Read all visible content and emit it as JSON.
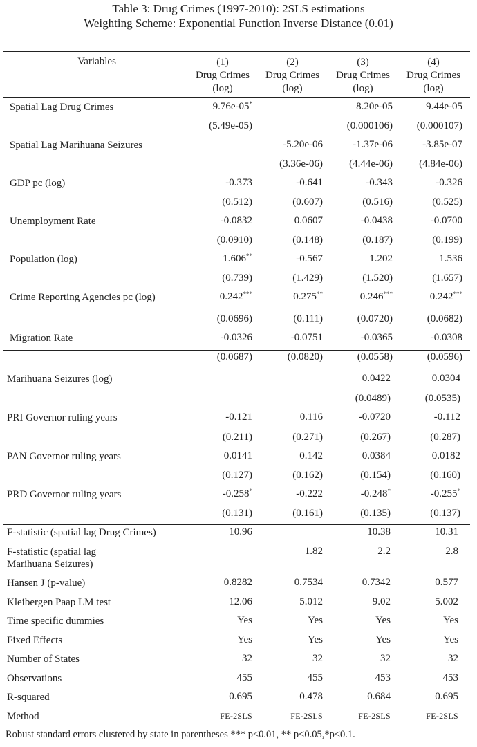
{
  "title": "Table 3: Drug Crimes (1997-2010): 2SLS estimations",
  "subtitle": "Weighting Scheme: Exponential Function Inverse Distance (0.01)",
  "header": {
    "variables": "Variables",
    "columns": [
      {
        "num": "(1)",
        "dep": "Drug Crimes",
        "unit": "(log)"
      },
      {
        "num": "(2)",
        "dep": "Drug Crimes",
        "unit": "(log)"
      },
      {
        "num": "(3)",
        "dep": "Drug Crimes",
        "unit": "(log)"
      },
      {
        "num": "(4)",
        "dep": "Drug Crimes",
        "unit": "(log)"
      }
    ]
  },
  "rows": [
    {
      "label": "Spatial Lag Drug Crimes",
      "values": [
        "9.76e-05",
        "",
        "8.20e-05",
        "9.44e-05"
      ],
      "stars": [
        "*",
        "",
        "",
        ""
      ]
    },
    {
      "label": "",
      "values": [
        "(5.49e-05)",
        "",
        "(0.000106)",
        "(0.000107)"
      ]
    },
    {
      "label": "Spatial Lag Marihuana Seizures",
      "values": [
        "",
        "-5.20e-06",
        "-1.37e-06",
        "-3.85e-07"
      ]
    },
    {
      "label": "",
      "values": [
        "",
        "(3.36e-06)",
        "(4.44e-06)",
        "(4.84e-06)"
      ]
    },
    {
      "label": "GDP pc (log)",
      "values": [
        "-0.373",
        "-0.641",
        "-0.343",
        "-0.326"
      ]
    },
    {
      "label": "",
      "values": [
        "(0.512)",
        "(0.607)",
        "(0.516)",
        "(0.525)"
      ]
    },
    {
      "label": "Unemployment Rate",
      "values": [
        "-0.0832",
        "0.0607",
        "-0.0438",
        "-0.0700"
      ]
    },
    {
      "label": "",
      "values": [
        "(0.0910)",
        "(0.148)",
        "(0.187)",
        "(0.199)"
      ]
    },
    {
      "label": "Population (log)",
      "values": [
        "1.606",
        "-0.567",
        "1.202",
        "1.536"
      ],
      "stars": [
        "**",
        "",
        "",
        ""
      ]
    },
    {
      "label": "",
      "values": [
        "(0.739)",
        "(1.429)",
        "(1.520)",
        "(1.657)"
      ]
    },
    {
      "label": "Crime Reporting Agencies pc (log)",
      "values": [
        "0.242",
        "0.275",
        "0.246",
        "0.242"
      ],
      "stars": [
        "***",
        "**",
        "***",
        "***"
      ]
    },
    {
      "label": "",
      "values": [
        "(0.0696)",
        "(0.111)",
        "(0.0720)",
        "(0.0682)"
      ]
    },
    {
      "label": "Migration Rate",
      "values": [
        "-0.0326",
        "-0.0751",
        "-0.0365",
        "-0.0308"
      ]
    },
    {
      "label": "",
      "values": [
        "(0.0687)",
        "(0.0820)",
        "(0.0558)",
        "(0.0596)"
      ]
    },
    {
      "label": "Marihuana Seizures (log)",
      "values": [
        "",
        "",
        "0.0422",
        "0.0304"
      ]
    },
    {
      "label": "",
      "values": [
        "",
        "",
        "(0.0489)",
        "(0.0535)"
      ]
    },
    {
      "label": "PRI Governor ruling years",
      "values": [
        "-0.121",
        "0.116",
        "-0.0720",
        "-0.112"
      ]
    },
    {
      "label": "",
      "values": [
        "(0.211)",
        "(0.271)",
        "(0.267)",
        "(0.287)"
      ]
    },
    {
      "label": "PAN Governor ruling years",
      "values": [
        "0.0141",
        "0.142",
        "0.0384",
        "0.0182"
      ]
    },
    {
      "label": "",
      "values": [
        "(0.127)",
        "(0.162)",
        "(0.154)",
        "(0.160)"
      ]
    },
    {
      "label": "PRD Governor ruling years",
      "values": [
        "-0.258",
        "-0.222",
        "-0.248",
        "-0.255"
      ],
      "stars": [
        "*",
        "",
        "*",
        "*"
      ]
    },
    {
      "label": "",
      "values": [
        "(0.131)",
        "(0.161)",
        "(0.135)",
        "(0.137)"
      ]
    },
    {
      "label": "F-statistic (spatial lag Drug Crimes)",
      "values": [
        "10.96",
        "",
        "10.38",
        "10.31"
      ]
    },
    {
      "label": "F-statistic (spatial lag",
      "label2": "Marihuana Seizures)",
      "values": [
        "",
        "1.82",
        "2.2",
        "2.8"
      ]
    },
    {
      "label": "Hansen J (p-value)",
      "values": [
        "0.8282",
        "0.7534",
        "0.7342",
        "0.577"
      ]
    },
    {
      "label": "Kleibergen Paap LM test",
      "values": [
        "12.06",
        "5.012",
        "9.02",
        "5.002"
      ]
    },
    {
      "label": "Time specific dummies",
      "values": [
        "Yes",
        "Yes",
        "Yes",
        "Yes"
      ]
    },
    {
      "label": "Fixed Effects",
      "values": [
        "Yes",
        "Yes",
        "Yes",
        "Yes"
      ]
    },
    {
      "label": "Number of States",
      "values": [
        "32",
        "32",
        "32",
        "32"
      ]
    },
    {
      "label": "Observations",
      "values": [
        "455",
        "455",
        "453",
        "453"
      ]
    },
    {
      "label": "R-squared",
      "values": [
        "0.695",
        "0.478",
        "0.684",
        "0.695"
      ]
    },
    {
      "label": "Method",
      "values": [
        "FE-2SLS",
        "FE-2SLS",
        "FE-2SLS",
        "FE-2SLS"
      ]
    }
  ],
  "footnote": "Robust standard errors clustered by state in parentheses *** p<0.01, ** p<0.05,*p<0.1."
}
